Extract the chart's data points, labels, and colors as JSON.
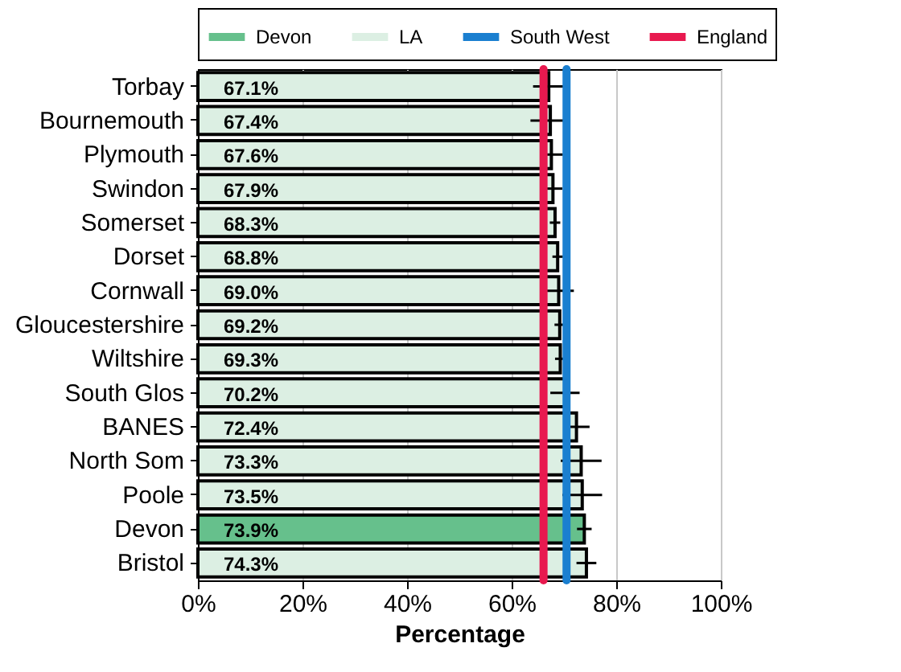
{
  "chart_data": {
    "type": "bar",
    "orientation": "horizontal",
    "xlabel": "Percentage",
    "categories": [
      "Torbay",
      "Bournemouth",
      "Plymouth",
      "Swindon",
      "Somerset",
      "Dorset",
      "Cornwall",
      "Gloucestershire",
      "Wiltshire",
      "South Glos",
      "BANES",
      "North Som",
      "Poole",
      "Devon",
      "Bristol"
    ],
    "series": [
      {
        "name": "Devon",
        "color": "#66c08c",
        "values": [
          null,
          null,
          null,
          null,
          null,
          null,
          null,
          null,
          null,
          null,
          null,
          null,
          null,
          73.9,
          null
        ],
        "value_labels": [
          null,
          null,
          null,
          null,
          null,
          null,
          null,
          null,
          null,
          null,
          null,
          null,
          null,
          "73.9%",
          null
        ],
        "errors": [
          null,
          null,
          null,
          null,
          null,
          null,
          null,
          null,
          null,
          null,
          null,
          null,
          null,
          1.4,
          null
        ]
      },
      {
        "name": "LA",
        "color": "#dcefe3",
        "values": [
          67.1,
          67.4,
          67.6,
          67.9,
          68.3,
          68.8,
          69.0,
          69.2,
          69.3,
          70.2,
          72.4,
          73.3,
          73.5,
          null,
          74.3
        ],
        "value_labels": [
          "67.1%",
          "67.4%",
          "67.6%",
          "67.9%",
          "68.3%",
          "68.8%",
          "69.0%",
          "69.2%",
          "69.3%",
          "70.2%",
          "72.4%",
          "73.3%",
          "73.5%",
          null,
          "74.3%"
        ],
        "errors": [
          3.0,
          3.8,
          2.2,
          1.8,
          1.0,
          1.0,
          2.9,
          1.0,
          1.0,
          2.8,
          2.5,
          3.9,
          3.8,
          null,
          1.9
        ]
      }
    ],
    "ref_lines": [
      {
        "axis": "x",
        "value": 70.5,
        "label": "South West",
        "color": "#1a7fd0"
      },
      {
        "axis": "x",
        "value": 66.1,
        "label": "England",
        "color": "#e8194f"
      }
    ],
    "xlim": [
      0,
      100
    ],
    "xticks": [
      {
        "value": 0,
        "label": "0%"
      },
      {
        "value": 20,
        "label": "20%"
      },
      {
        "value": 40,
        "label": "40%"
      },
      {
        "value": 60,
        "label": "60%"
      },
      {
        "value": 80,
        "label": "80%"
      },
      {
        "value": 100,
        "label": "100%"
      }
    ],
    "grid": "x",
    "legend": "top"
  }
}
